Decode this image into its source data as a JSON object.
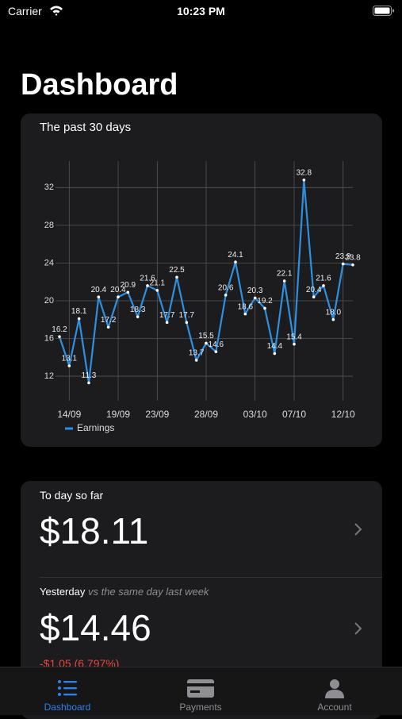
{
  "status_bar": {
    "carrier": "Carrier",
    "time": "10:23 PM"
  },
  "header": {
    "title": "Dashboard"
  },
  "chart_data": {
    "type": "line",
    "title": "The past 30 days",
    "categories": [
      null,
      "14/09",
      null,
      null,
      null,
      null,
      "19/09",
      null,
      null,
      null,
      "23/09",
      null,
      null,
      null,
      null,
      "28/09",
      null,
      null,
      null,
      null,
      "03/10",
      null,
      null,
      null,
      "07/10",
      null,
      null,
      null,
      null,
      "12/10",
      null
    ],
    "series": [
      {
        "name": "Earnings",
        "color": "#2f8fe0",
        "values": [
          16.2,
          13.1,
          18.1,
          11.3,
          20.4,
          17.2,
          20.4,
          20.9,
          18.3,
          21.6,
          21.1,
          17.7,
          22.5,
          17.7,
          13.7,
          15.5,
          14.6,
          20.6,
          24.1,
          18.6,
          20.3,
          19.2,
          14.4,
          22.1,
          15.4,
          32.8,
          20.4,
          21.6,
          18.0,
          23.9,
          23.8
        ],
        "value_labels": [
          "16.2",
          "13.1",
          "18.1",
          "11.3",
          "20.4",
          "17.2",
          "20.4",
          "20.9",
          "18.3",
          "21.6",
          "21.1",
          "17.7",
          "22.5",
          "17.7",
          "13.7",
          "15.5",
          "14.6",
          "20.6",
          "24.1",
          "18.6",
          "20.3",
          "19.2",
          "14.4",
          "22.1",
          "15.4",
          "32.8",
          "20.4",
          "21.6",
          "18.0",
          "23.9",
          "23.8"
        ]
      }
    ],
    "ylim": [
      9.4,
      34.8
    ],
    "yticks": [
      12,
      16,
      20,
      24,
      28,
      32
    ],
    "grid": true,
    "legend": "bottom-left"
  },
  "today": {
    "label": "To day so far",
    "amount": "$18.11"
  },
  "yesterday": {
    "label": "Yesterday",
    "comparison": "vs the same day last week",
    "amount": "$14.46",
    "change": "-$1.05 (6.797%)"
  },
  "tabs": [
    "Dashboard",
    "Payments",
    "Account"
  ]
}
